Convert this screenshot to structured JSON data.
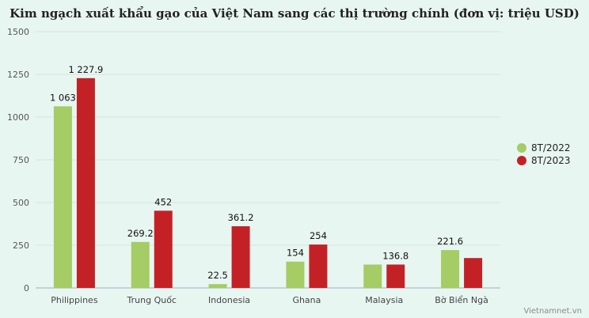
{
  "chart_data": {
    "type": "bar",
    "title": "Kim ngạch xuất khẩu gạo của Việt Nam sang các thị trường chính (đơn vị: triệu USD)",
    "categories": [
      "Philippines",
      "Trung Quốc",
      "Indonesia",
      "Ghana",
      "Malaysia",
      "Bờ Biển Ngà"
    ],
    "series": [
      {
        "name": "8T/2022",
        "color": "#a5cc65",
        "values": [
          1063,
          269.2,
          22.5,
          154,
          136.8,
          221.6
        ],
        "labels": [
          "1 063",
          "269.2",
          "22.5",
          "154",
          "",
          "221.6"
        ]
      },
      {
        "name": "8T/2023",
        "color": "#c42127",
        "values": [
          1227.9,
          452,
          361.2,
          254,
          136.8,
          175
        ],
        "labels": [
          "1 227.9",
          "452",
          "361.2",
          "254",
          "136.8",
          ""
        ]
      }
    ],
    "ylim": [
      0,
      1500
    ],
    "yticks": [
      0,
      250,
      500,
      750,
      1000,
      1250,
      1500
    ],
    "grid": true,
    "legend": "right",
    "xlabel": "",
    "ylabel": ""
  },
  "credit": "Vietnamnet.vn"
}
